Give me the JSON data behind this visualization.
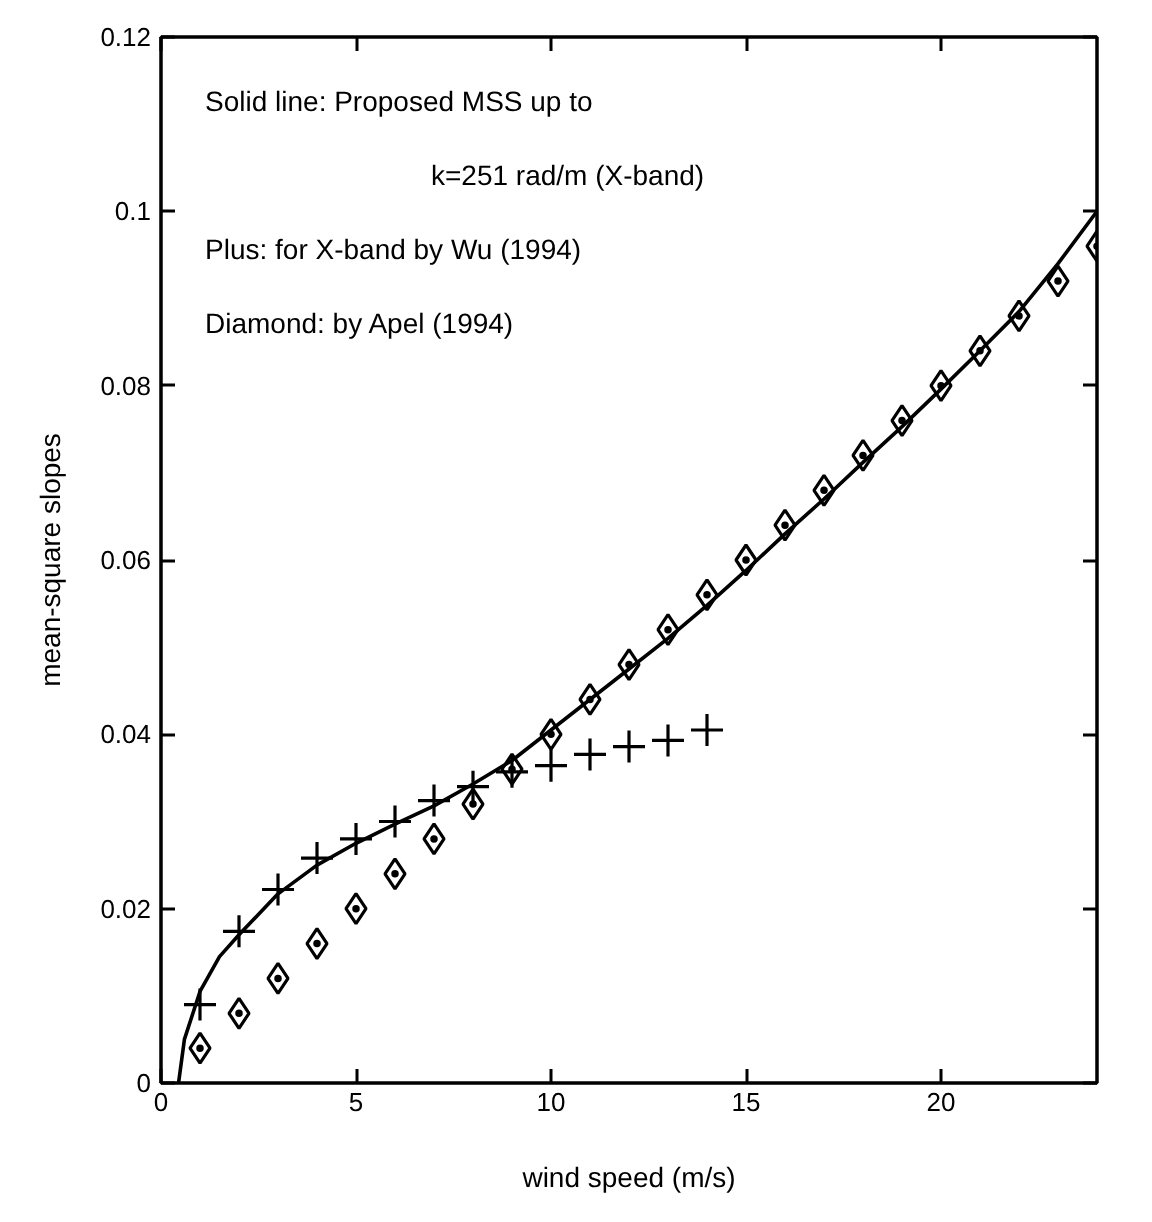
{
  "chart_data": {
    "type": "line",
    "xlabel": "wind speed (m/s)",
    "ylabel": "mean-square slopes",
    "annotations": [
      "Solid line: Proposed MSS up to",
      "k=251 rad/m (X-band)",
      "Plus: for X-band by Wu (1994)",
      "Diamond: by Apel (1994)"
    ],
    "xlim": [
      0,
      24
    ],
    "ylim": [
      0,
      0.12
    ],
    "xticks": [
      0,
      5,
      10,
      15,
      20
    ],
    "yticks": [
      0,
      0.02,
      0.04,
      0.06,
      0.08,
      0.1,
      0.12
    ],
    "grid": false,
    "series": [
      {
        "color": "#000000",
        "marker": "none",
        "line_style": "solid",
        "x": [
          0.45,
          0.6,
          1,
          1.5,
          2,
          3,
          4,
          5,
          6,
          7,
          8,
          9,
          10,
          11,
          12,
          13,
          14,
          15,
          16,
          17,
          18,
          19,
          20,
          21,
          22,
          23,
          24
        ],
        "values": [
          0,
          0.005,
          0.0105,
          0.0145,
          0.017,
          0.0217,
          0.025,
          0.0275,
          0.0297,
          0.0318,
          0.0343,
          0.037,
          0.0405,
          0.044,
          0.0475,
          0.051,
          0.0548,
          0.0588,
          0.063,
          0.067,
          0.0712,
          0.0753,
          0.0796,
          0.084,
          0.0885,
          0.094,
          0.1
        ]
      },
      {
        "type": "scatter",
        "color": "#000000",
        "marker": "cross",
        "x": [
          1,
          2,
          3,
          4,
          5,
          6,
          7,
          8,
          9,
          10,
          11,
          12,
          13,
          14
        ],
        "values": [
          0.009,
          0.0174,
          0.0222,
          0.0258,
          0.028,
          0.03,
          0.0324,
          0.034,
          0.0357,
          0.0364,
          0.0377,
          0.0386,
          0.0393,
          0.0405
        ]
      },
      {
        "type": "scatter",
        "color": "#000000",
        "marker": "diamond",
        "x": [
          1,
          2,
          3,
          4,
          5,
          6,
          7,
          8,
          9,
          10,
          11,
          12,
          13,
          14,
          15,
          16,
          17,
          18,
          19,
          20,
          21,
          22,
          23,
          24
        ],
        "values": [
          0.004,
          0.008,
          0.012,
          0.016,
          0.02,
          0.024,
          0.028,
          0.032,
          0.036,
          0.04,
          0.044,
          0.048,
          0.052,
          0.056,
          0.06,
          0.064,
          0.068,
          0.072,
          0.076,
          0.08,
          0.084,
          0.088,
          0.092,
          0.096
        ]
      }
    ]
  }
}
